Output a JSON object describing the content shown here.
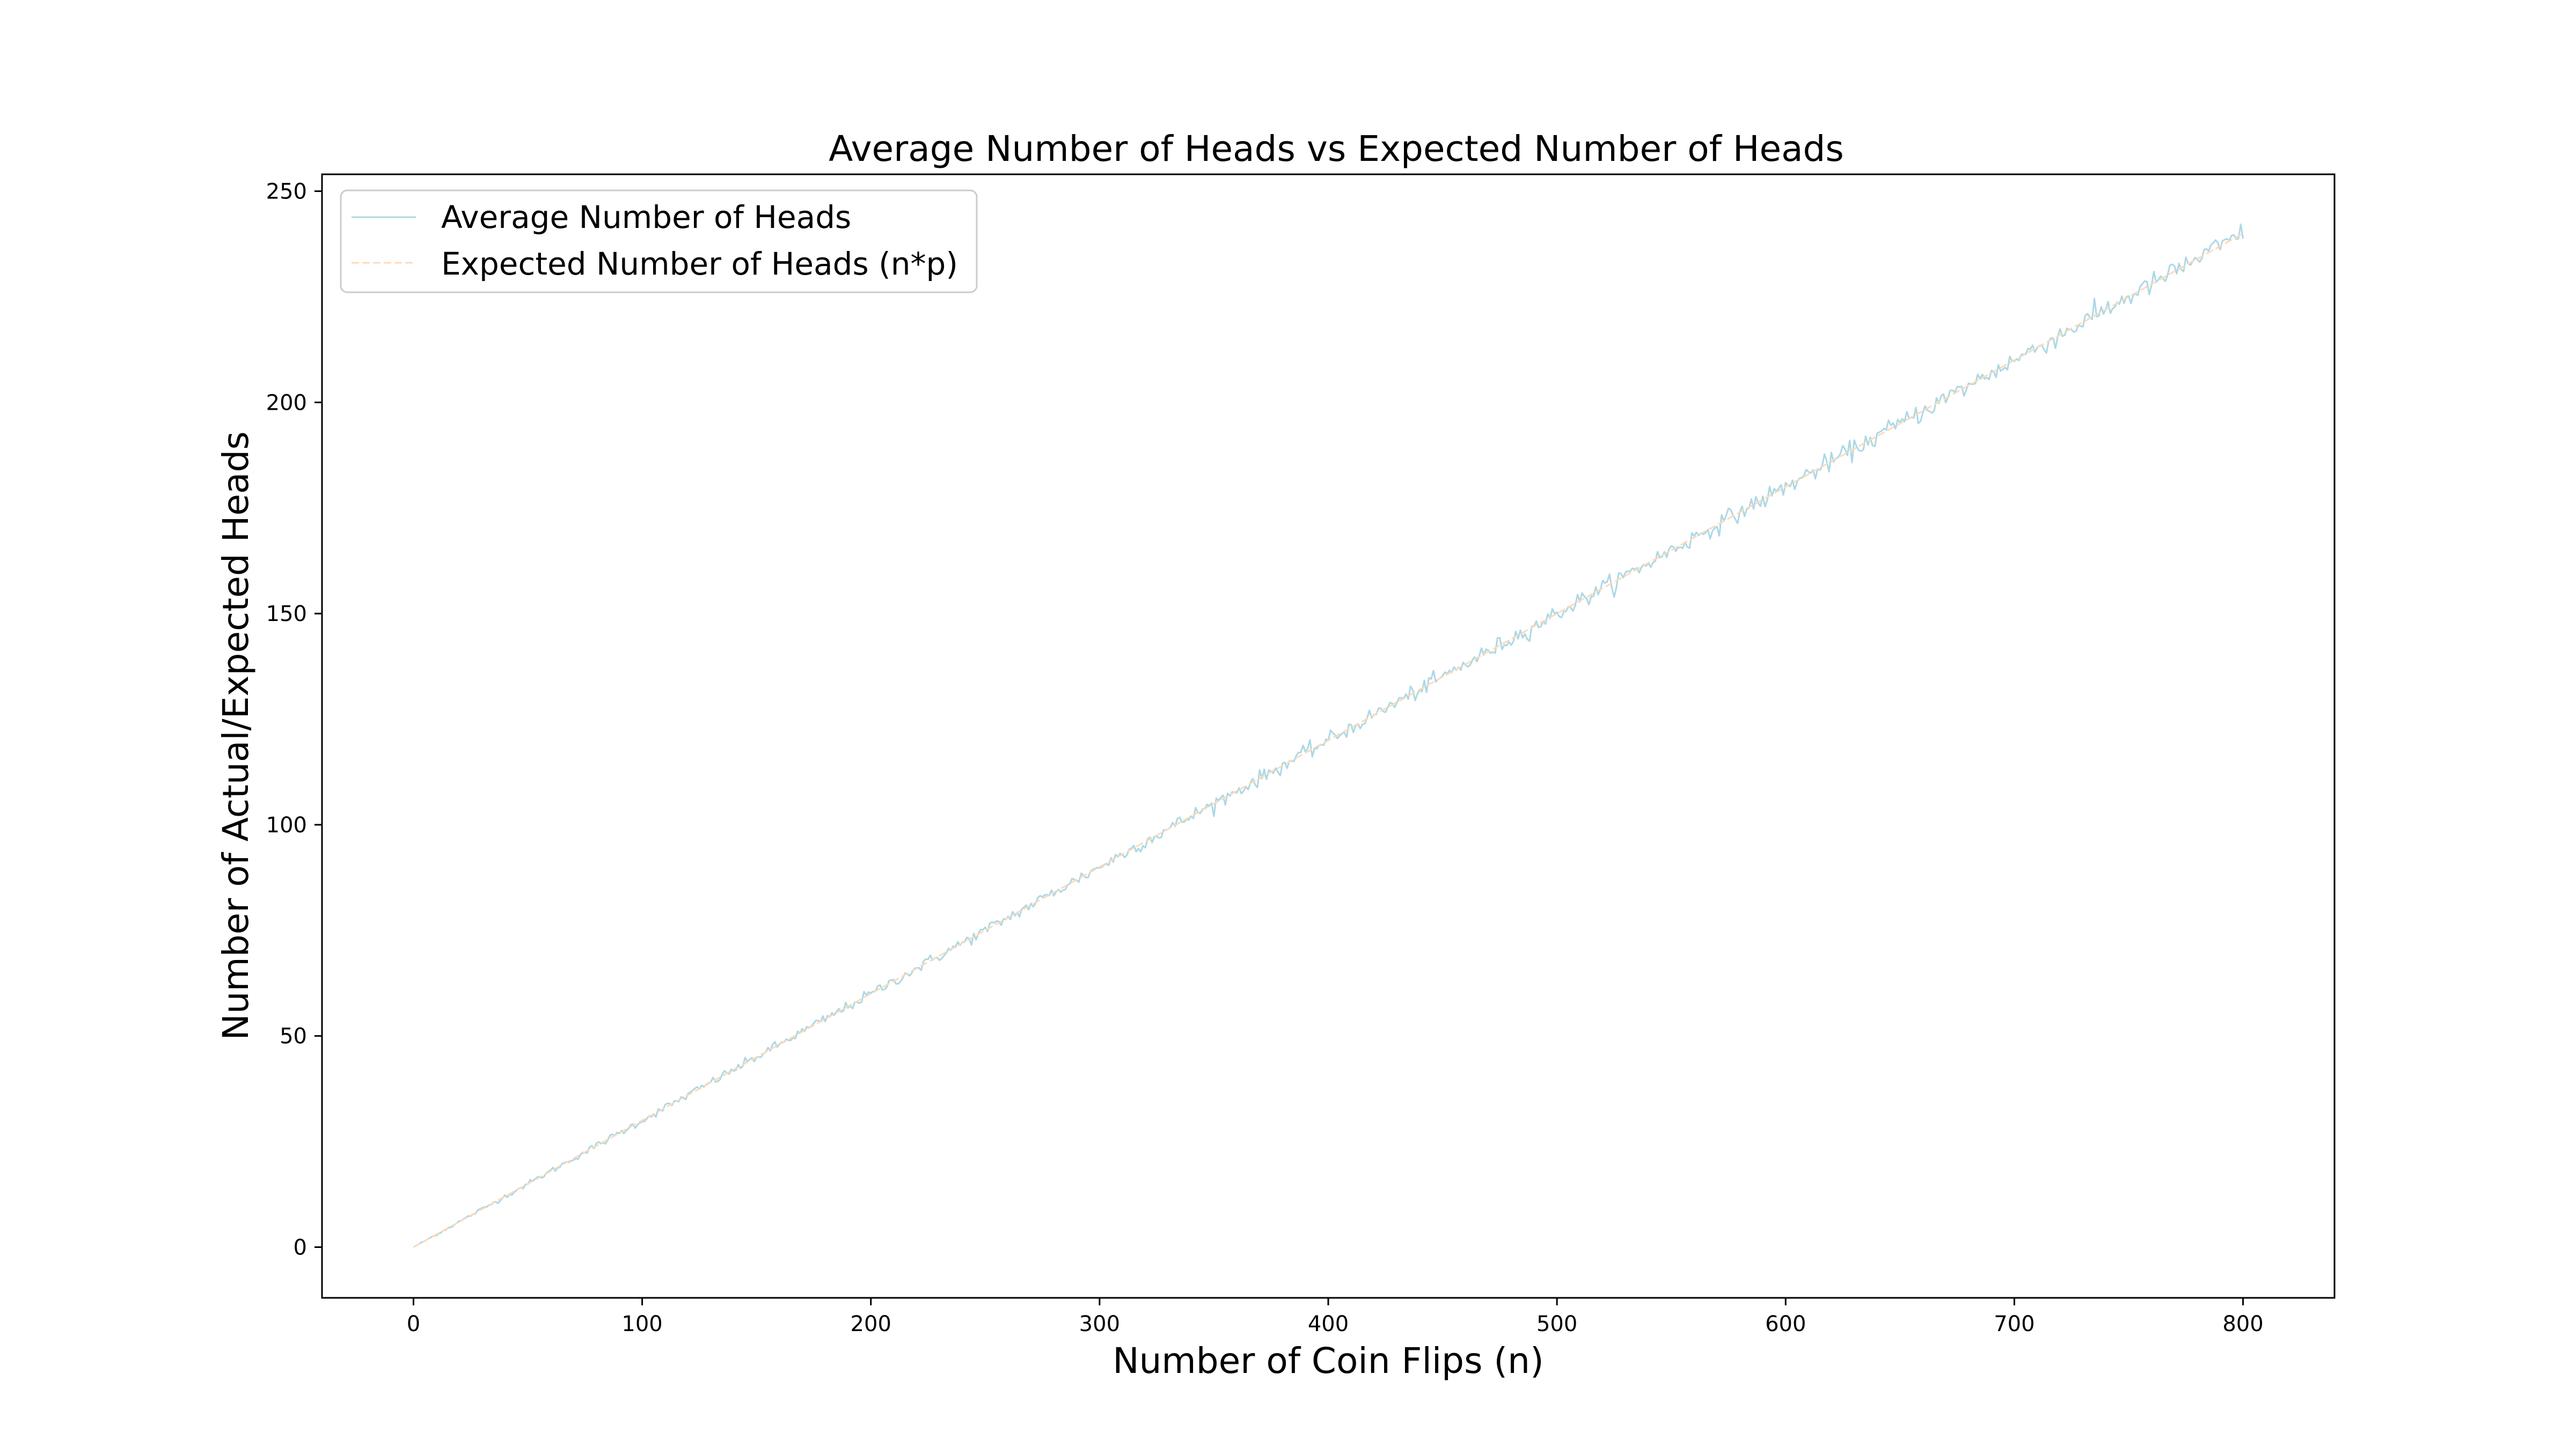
{
  "chart_data": {
    "type": "line",
    "title": "Average Number of Heads vs Expected Number of Heads",
    "xlabel": "Number of Coin Flips (n)",
    "ylabel": "Number of Actual/Expected Heads",
    "xlim": [
      -40,
      840
    ],
    "ylim": [
      -12,
      254
    ],
    "xticks": [
      0,
      100,
      200,
      300,
      400,
      500,
      600,
      700,
      800
    ],
    "yticks": [
      0,
      50,
      100,
      150,
      200,
      250
    ],
    "x_range": [
      0,
      800
    ],
    "p": 0.3,
    "grid": false,
    "legend_position": "top-left",
    "series": [
      {
        "name": "Average Number of Heads",
        "style": "solid",
        "color": "#add8e6",
        "description": "noisy simulated average closely tracking n*p",
        "sample_points": [
          [
            0,
            0
          ],
          [
            100,
            30
          ],
          [
            200,
            60
          ],
          [
            300,
            90
          ],
          [
            400,
            120
          ],
          [
            500,
            150
          ],
          [
            600,
            180
          ],
          [
            700,
            210
          ],
          [
            800,
            240
          ]
        ]
      },
      {
        "name": "Expected Number of Heads (n*p)",
        "style": "dashed",
        "color": "#ffdab9",
        "sample_points": [
          [
            0,
            0
          ],
          [
            800,
            240
          ]
        ]
      }
    ]
  }
}
